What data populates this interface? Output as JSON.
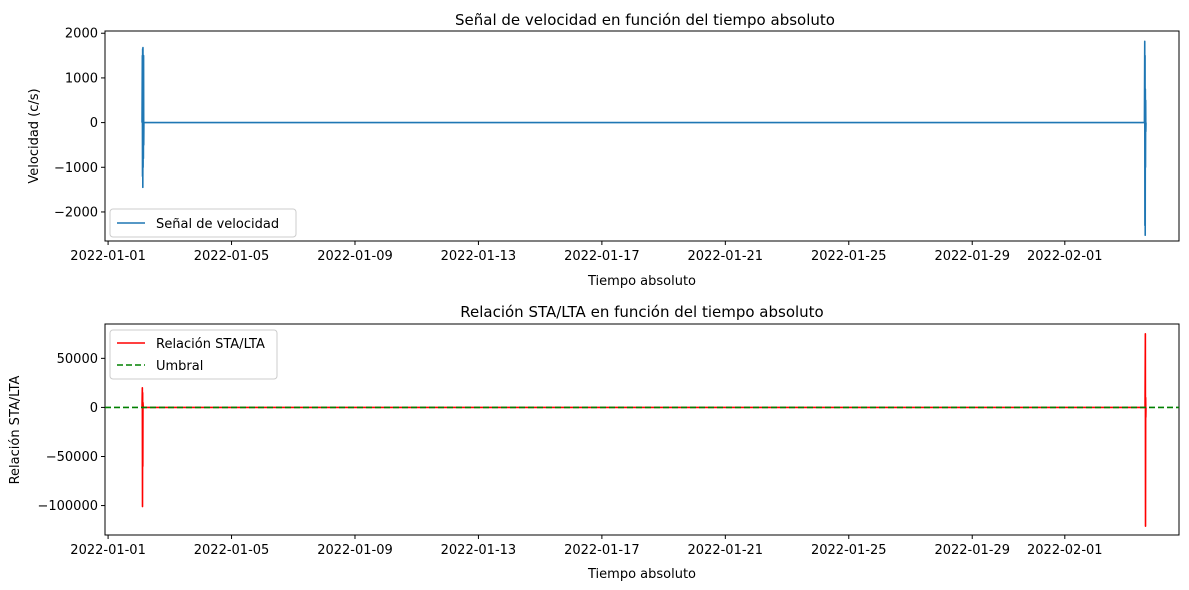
{
  "chart_data": [
    {
      "type": "line",
      "title": "Señal de velocidad en función del tiempo absoluto",
      "xlabel": "Tiempo absoluto",
      "ylabel": "Velocidad (c/s)",
      "x_range": [
        "2022-01-01T00:00",
        "2022-02-04T18:00"
      ],
      "xlim": [
        -0.1,
        34.7
      ],
      "ylim": [
        -2650,
        2050
      ],
      "x_ticks": [
        {
          "x": 0,
          "label": "2022-01-01"
        },
        {
          "x": 4,
          "label": "2022-01-05"
        },
        {
          "x": 8,
          "label": "2022-01-09"
        },
        {
          "x": 12,
          "label": "2022-01-13"
        },
        {
          "x": 16,
          "label": "2022-01-17"
        },
        {
          "x": 20,
          "label": "2022-01-21"
        },
        {
          "x": 24,
          "label": "2022-01-25"
        },
        {
          "x": 28,
          "label": "2022-01-29"
        },
        {
          "x": 31,
          "label": "2022-02-01"
        }
      ],
      "y_ticks": [
        {
          "y": 2000,
          "label": "2000"
        },
        {
          "y": 1000,
          "label": "1000"
        },
        {
          "y": 0,
          "label": "0"
        },
        {
          "y": -1000,
          "label": "−1000"
        },
        {
          "y": -2000,
          "label": "−2000"
        }
      ],
      "grid": false,
      "legend_position": "lower-left",
      "series": [
        {
          "name": "Señal de velocidad",
          "color": "#1f77b4",
          "style": "solid",
          "points": [
            [
              1.1,
              0
            ],
            [
              1.11,
              1500
            ],
            [
              1.115,
              -1200
            ],
            [
              1.12,
              1650
            ],
            [
              1.125,
              -1450
            ],
            [
              1.13,
              1680
            ],
            [
              1.135,
              -1000
            ],
            [
              1.14,
              1200
            ],
            [
              1.145,
              -800
            ],
            [
              1.15,
              1500
            ],
            [
              1.155,
              -500
            ],
            [
              1.16,
              0
            ],
            [
              33.58,
              0
            ],
            [
              33.59,
              1820
            ],
            [
              33.595,
              -2300
            ],
            [
              33.6,
              1500
            ],
            [
              33.605,
              -2520
            ],
            [
              33.61,
              750
            ],
            [
              33.615,
              -1000
            ],
            [
              33.62,
              500
            ],
            [
              33.625,
              -200
            ],
            [
              33.63,
              0
            ]
          ]
        }
      ]
    },
    {
      "type": "line",
      "title": "Relación STA/LTA en función del tiempo absoluto",
      "xlabel": "Tiempo absoluto",
      "ylabel": "Relación STA/LTA",
      "x_range": [
        "2022-01-01T00:00",
        "2022-02-04T18:00"
      ],
      "xlim": [
        -0.1,
        34.7
      ],
      "ylim": [
        -130000,
        85000
      ],
      "x_ticks": [
        {
          "x": 0,
          "label": "2022-01-01"
        },
        {
          "x": 4,
          "label": "2022-01-05"
        },
        {
          "x": 8,
          "label": "2022-01-09"
        },
        {
          "x": 12,
          "label": "2022-01-13"
        },
        {
          "x": 16,
          "label": "2022-01-17"
        },
        {
          "x": 20,
          "label": "2022-01-21"
        },
        {
          "x": 24,
          "label": "2022-01-25"
        },
        {
          "x": 28,
          "label": "2022-01-29"
        },
        {
          "x": 31,
          "label": "2022-02-01"
        }
      ],
      "y_ticks": [
        {
          "y": 50000,
          "label": "50000"
        },
        {
          "y": 0,
          "label": "0"
        },
        {
          "y": -50000,
          "label": "−50000"
        },
        {
          "y": -100000,
          "label": "−100000"
        }
      ],
      "grid": false,
      "legend_position": "upper-left",
      "series": [
        {
          "name": "Relación STA/LTA",
          "color": "#ff0000",
          "style": "solid",
          "points": [
            [
              1.1,
              0
            ],
            [
              1.11,
              20000
            ],
            [
              1.115,
              -101000
            ],
            [
              1.12,
              15000
            ],
            [
              1.125,
              -60000
            ],
            [
              1.13,
              5000
            ],
            [
              1.14,
              0
            ],
            [
              33.6,
              0
            ],
            [
              33.61,
              75000
            ],
            [
              33.615,
              -121000
            ],
            [
              33.62,
              10000
            ],
            [
              33.625,
              -10000
            ],
            [
              33.63,
              0
            ]
          ]
        },
        {
          "name": "Umbral",
          "color": "#008000",
          "style": "dashed",
          "hline": 0
        }
      ]
    }
  ]
}
